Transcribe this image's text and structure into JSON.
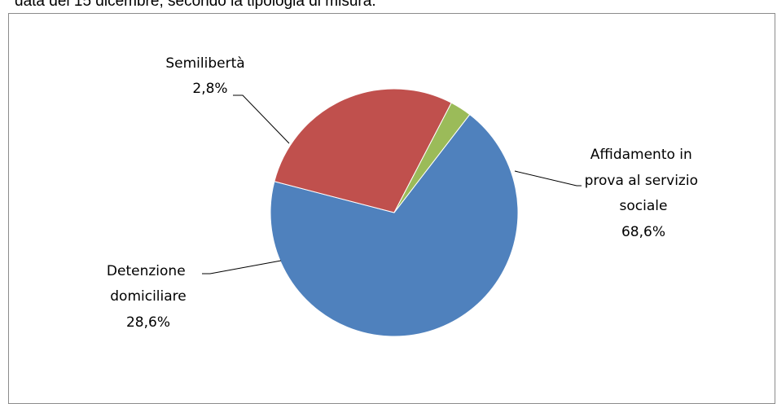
{
  "page_text": "data del 15 dicembre, secondo la tipologia di misura.",
  "chart_data": {
    "type": "pie",
    "title": "",
    "slices": [
      {
        "name": "Affidamento in prova al servizio sociale",
        "value": 68.6,
        "label_lines": [
          "Affidamento in",
          "prova al servizio",
          "sociale"
        ],
        "pct_label": "68,6%",
        "color": "#4f81bd"
      },
      {
        "name": "Detenzione domiciliare",
        "value": 28.6,
        "label_lines": [
          "Detenzione",
          "domiciliare"
        ],
        "pct_label": "28,6%",
        "color": "#c0504d"
      },
      {
        "name": "Semilibertà",
        "value": 2.8,
        "label_lines": [
          "Semilibertà"
        ],
        "pct_label": "2,8%",
        "color": "#9bbb59"
      }
    ]
  }
}
